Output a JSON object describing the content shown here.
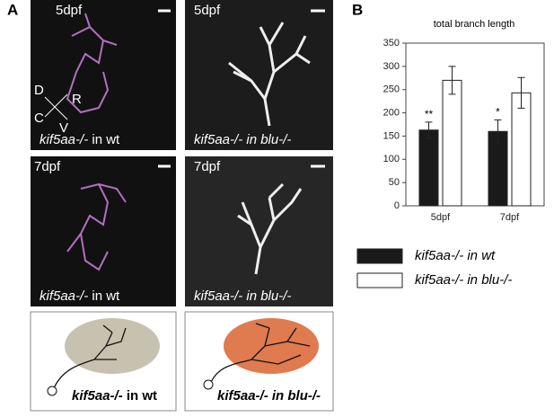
{
  "panel_labels": [
    "A",
    "B"
  ],
  "panel_a": {
    "images": [
      {
        "age": "5dpf",
        "caption": {
          "gene": "kif5aa-/-",
          "context": "in wt"
        }
      },
      {
        "age": "5dpf",
        "caption": {
          "gene": "kif5aa-/-",
          "context": "in blu-/-"
        }
      },
      {
        "age": "7dpf",
        "caption": {
          "gene": "kif5aa-/-",
          "context": "in wt"
        }
      },
      {
        "age": "7dpf",
        "caption": {
          "gene": "kif5aa-/-",
          "context": "in blu-/-"
        }
      }
    ],
    "orientation": {
      "dorsal": "D",
      "rostral": "R",
      "caudal": "C",
      "ventral": "V"
    },
    "diagrams": [
      {
        "gene": "kif5aa-/-",
        "context": "in wt"
      },
      {
        "gene": "kif5aa-/-",
        "context": "in blu-/-"
      }
    ]
  },
  "chart_data": {
    "type": "bar",
    "title": "total branch length",
    "categories": [
      "5dpf",
      "7dpf"
    ],
    "series": [
      {
        "name": "kif5aa-/- in wt",
        "color": "#1a1a1a",
        "values": [
          163,
          160
        ],
        "errors": [
          17,
          25
        ]
      },
      {
        "name": "kif5aa-/- in blu-/-",
        "color": "#ffffff",
        "values": [
          270,
          243
        ],
        "errors": [
          30,
          33
        ]
      }
    ],
    "significance": [
      "**",
      "*"
    ],
    "ylim": [
      0,
      350
    ],
    "yticks": [
      0,
      50,
      100,
      150,
      200,
      250,
      300,
      350
    ]
  }
}
